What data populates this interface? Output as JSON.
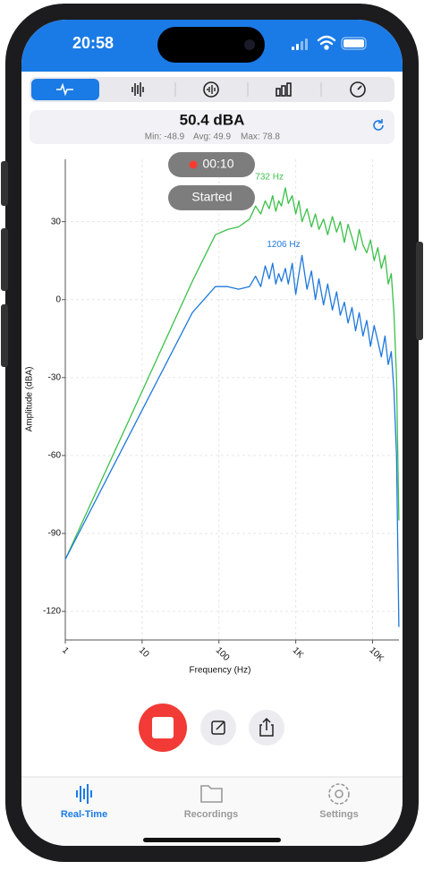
{
  "status_bar": {
    "time": "20:58"
  },
  "reading": {
    "level": "50.4 dBA",
    "min": "Min: -48.9",
    "avg": "Avg: 49.9",
    "max": "Max: 78.8"
  },
  "recording": {
    "timer": "00:10",
    "state": "Started"
  },
  "chart_data": {
    "type": "line",
    "xlabel": "Frequency (Hz)",
    "ylabel": "Amplitude (dBA)",
    "log_x": true,
    "grid": true,
    "xlim": [
      1,
      22050
    ],
    "ylim": [
      -131,
      54
    ],
    "xticks": [
      1,
      10,
      100,
      {
        "value": 1000,
        "label": "1K"
      },
      {
        "value": 10000,
        "label": "10K"
      }
    ],
    "yticks": [
      30,
      0,
      -30,
      -60,
      -90,
      -120
    ],
    "x": [
      1,
      45,
      90,
      130,
      180,
      250,
      300,
      350,
      400,
      450,
      500,
      550,
      600,
      650,
      732,
      800,
      900,
      1000,
      1100,
      1206,
      1400,
      1600,
      1800,
      2000,
      2300,
      2600,
      3000,
      3400,
      3800,
      4300,
      4800,
      5400,
      6000,
      6700,
      7500,
      8400,
      9400,
      10500,
      11700,
      13000,
      14500,
      16000,
      17500,
      19000,
      20500,
      22000
    ],
    "series": [
      {
        "color": "#3cc04a",
        "values": [
          -100,
          7,
          25,
          27,
          28,
          31,
          36,
          33,
          38,
          35,
          40,
          34,
          38,
          36,
          43,
          37,
          40,
          33,
          38,
          30,
          35,
          28,
          33,
          27,
          31,
          25,
          32,
          26,
          30,
          22,
          29,
          24,
          19,
          27,
          21,
          18,
          23,
          15,
          20,
          12,
          17,
          6,
          10,
          -5,
          -30,
          -85
        ]
      },
      {
        "color": "#1e78dc",
        "values": [
          -100,
          -5,
          5,
          5,
          4,
          5,
          9,
          5,
          13,
          8,
          14,
          6,
          10,
          7,
          12,
          6,
          14,
          2,
          10,
          17,
          4,
          11,
          0,
          8,
          -2,
          6,
          -4,
          3,
          -6,
          -1,
          -9,
          -3,
          -12,
          -5,
          -14,
          -8,
          -18,
          -10,
          -16,
          -22,
          -14,
          -25,
          -20,
          -35,
          -60,
          -126
        ]
      }
    ],
    "annotations": [
      {
        "series": 0,
        "text": "732 Hz"
      },
      {
        "series": 1,
        "text": "1206 Hz"
      }
    ]
  },
  "tab_bar": {
    "tabs": [
      "Real-Time",
      "Recordings",
      "Settings"
    ]
  }
}
